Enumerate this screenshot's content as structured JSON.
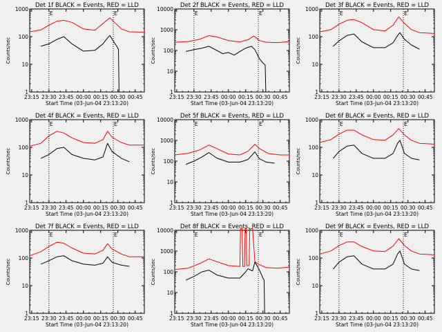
{
  "figure": {
    "background": "#f0f0f0",
    "events_color": "#000000",
    "lld_color": "#ff0000"
  },
  "chart_data": {
    "type": "line",
    "grid_layout": "3x3",
    "y_scale": "log",
    "ylabel": "Counts/sec",
    "xlabel": "Start Time (03-Jun-04 23:13:20)",
    "x_tick_labels": [
      "23:15",
      "23:30",
      "23:45",
      "00:00",
      "00:15",
      "00:30",
      "00:45"
    ],
    "x_tick_minutes": [
      0,
      15,
      30,
      45,
      60,
      75,
      90
    ],
    "xlim_minutes": [
      -1.7,
      98
    ],
    "markers": [
      {
        "label": "E",
        "minute": 15
      },
      {
        "label": "E",
        "minute": 71
      }
    ],
    "series_names": [
      "BLACK = Events",
      "RED = LLD"
    ],
    "panels": [
      {
        "title": "Det 1f BLACK = Events, RED = LLD",
        "ylim": [
          1,
          1000
        ],
        "y_tick_labels": [
          "1",
          "10",
          "100",
          "1000"
        ],
        "y_tick_values": [
          1,
          10,
          100,
          1000
        ],
        "red": {
          "minute": [
            -1.7,
            8,
            15,
            22,
            28,
            35,
            45,
            55,
            62,
            68,
            72,
            78,
            85,
            98
          ],
          "value": [
            150,
            175,
            260,
            360,
            390,
            330,
            190,
            170,
            300,
            480,
            330,
            190,
            150,
            145
          ]
        },
        "black": {
          "minute": [
            8,
            15,
            22,
            28,
            35,
            45,
            55,
            62,
            66,
            68,
            72,
            74,
            75.5,
            76
          ],
          "value": [
            45,
            55,
            80,
            100,
            55,
            30,
            32,
            55,
            90,
            110,
            60,
            45,
            35,
            1
          ]
        }
      },
      {
        "title": "Det 2f BLACK = Events, RED = LLD",
        "ylim": [
          1,
          10000
        ],
        "y_tick_labels": [
          "1",
          "10",
          "100",
          "1000",
          "10000"
        ],
        "y_tick_values": [
          1,
          10,
          100,
          1000,
          10000
        ],
        "red": {
          "minute": [
            -1.7,
            10,
            20,
            28,
            35,
            45,
            55,
            62,
            67,
            72,
            78,
            88,
            98
          ],
          "value": [
            250,
            270,
            350,
            520,
            450,
            300,
            260,
            330,
            500,
            300,
            250,
            240,
            270
          ]
        },
        "black": {
          "minute": [
            8,
            15,
            22,
            28,
            35,
            40,
            45,
            50,
            55,
            60,
            65,
            68,
            72,
            75,
            77,
            77.5
          ],
          "value": [
            90,
            110,
            130,
            160,
            100,
            70,
            80,
            60,
            90,
            130,
            160,
            110,
            40,
            25,
            20,
            1
          ]
        }
      },
      {
        "title": "Det 3f BLACK = Events, RED = LLD",
        "ylim": [
          1,
          1000
        ],
        "y_tick_labels": [
          "1",
          "10",
          "100",
          "1000"
        ],
        "y_tick_values": [
          1,
          10,
          100,
          1000
        ],
        "red": {
          "minute": [
            -1.7,
            8,
            15,
            22,
            28,
            35,
            45,
            55,
            62,
            67,
            72,
            78,
            85,
            98
          ],
          "value": [
            150,
            180,
            280,
            390,
            420,
            320,
            180,
            160,
            260,
            520,
            300,
            180,
            140,
            130
          ]
        },
        "black": {
          "minute": [
            10,
            15,
            22,
            28,
            35,
            45,
            55,
            62,
            66,
            68,
            72,
            78,
            85
          ],
          "value": [
            45,
            70,
            110,
            125,
            65,
            40,
            40,
            60,
            110,
            140,
            80,
            50,
            35
          ]
        }
      },
      {
        "title": "Det 4f BLACK = Events, RED = LLD",
        "ylim": [
          1,
          1000
        ],
        "y_tick_labels": [
          "1",
          "10",
          "100",
          "1000"
        ],
        "y_tick_values": [
          1,
          10,
          100,
          1000
        ],
        "red": {
          "minute": [
            -1.7,
            8,
            15,
            22,
            28,
            35,
            45,
            55,
            62,
            66,
            70,
            78,
            85,
            98
          ],
          "value": [
            110,
            140,
            260,
            380,
            330,
            220,
            150,
            140,
            190,
            380,
            230,
            150,
            120,
            120
          ]
        },
        "black": {
          "minute": [
            8,
            15,
            22,
            28,
            35,
            45,
            55,
            62,
            66,
            70,
            78,
            85
          ],
          "value": [
            40,
            55,
            90,
            100,
            55,
            40,
            35,
            45,
            140,
            70,
            40,
            30
          ]
        }
      },
      {
        "title": "Det 5f BLACK = Events, RED = LLD",
        "ylim": [
          1,
          10000
        ],
        "y_tick_labels": [
          "1",
          "10",
          "100",
          "1000",
          "10000"
        ],
        "y_tick_values": [
          1,
          10,
          100,
          1000,
          10000
        ],
        "red": {
          "minute": [
            -1.7,
            10,
            20,
            28,
            35,
            45,
            55,
            62,
            68,
            72,
            80,
            90,
            98
          ],
          "value": [
            200,
            240,
            350,
            600,
            400,
            220,
            200,
            300,
            650,
            400,
            230,
            200,
            200
          ]
        },
        "black": {
          "minute": [
            8,
            15,
            22,
            28,
            35,
            45,
            55,
            62,
            68,
            72,
            78,
            85
          ],
          "value": [
            70,
            100,
            160,
            260,
            140,
            90,
            90,
            120,
            280,
            130,
            90,
            80
          ]
        }
      },
      {
        "title": "Det 6f BLACK = Events, RED = LLD",
        "ylim": [
          1,
          1000
        ],
        "y_tick_labels": [
          "1",
          "10",
          "100",
          "1000"
        ],
        "y_tick_values": [
          1,
          10,
          100,
          1000
        ],
        "red": {
          "minute": [
            -1.7,
            8,
            15,
            22,
            28,
            35,
            45,
            55,
            62,
            67,
            72,
            78,
            85,
            98
          ],
          "value": [
            150,
            190,
            300,
            420,
            420,
            280,
            190,
            180,
            280,
            480,
            280,
            180,
            140,
            130
          ]
        },
        "black": {
          "minute": [
            10,
            15,
            22,
            28,
            35,
            45,
            55,
            62,
            66,
            68,
            72,
            78,
            85
          ],
          "value": [
            40,
            70,
            110,
            120,
            60,
            40,
            40,
            60,
            140,
            180,
            60,
            40,
            35
          ]
        }
      },
      {
        "title": "Det 7f BLACK = Events, RED = LLD",
        "ylim": [
          1,
          1000
        ],
        "y_tick_labels": [
          "1",
          "10",
          "100",
          "1000"
        ],
        "y_tick_values": [
          1,
          10,
          100,
          1000
        ],
        "red": {
          "minute": [
            -1.7,
            8,
            15,
            22,
            28,
            35,
            45,
            55,
            62,
            66,
            70,
            78,
            85,
            98
          ],
          "value": [
            120,
            170,
            260,
            370,
            340,
            230,
            150,
            140,
            190,
            330,
            210,
            140,
            110,
            110
          ]
        },
        "black": {
          "minute": [
            8,
            15,
            22,
            28,
            35,
            45,
            55,
            62,
            66,
            70,
            78,
            85
          ],
          "value": [
            60,
            80,
            110,
            120,
            80,
            60,
            55,
            65,
            110,
            70,
            55,
            50
          ]
        }
      },
      {
        "title": "Det 8f BLACK = Events, RED = LLD",
        "ylim": [
          1,
          10000
        ],
        "y_tick_labels": [
          "1",
          "10",
          "100",
          "1000",
          "10000"
        ],
        "y_tick_values": [
          1,
          10,
          100,
          1000,
          10000
        ],
        "red": {
          "minute": [
            -1.7,
            10,
            20,
            28,
            35,
            45,
            55,
            55.5,
            57,
            57.5,
            59,
            59.5,
            60.5,
            61,
            63,
            63.5,
            66,
            68,
            72,
            78,
            88,
            98
          ],
          "value": [
            130,
            150,
            250,
            420,
            310,
            200,
            180,
            12000,
            12000,
            180,
            180,
            12000,
            12000,
            200,
            200,
            12000,
            12000,
            300,
            220,
            160,
            150,
            170
          ]
        },
        "black": {
          "minute": [
            8,
            15,
            22,
            28,
            35,
            45,
            55,
            60,
            62,
            66,
            68,
            72,
            75,
            76,
            76.5
          ],
          "value": [
            40,
            60,
            100,
            120,
            70,
            50,
            50,
            100,
            140,
            110,
            300,
            120,
            50,
            40,
            1
          ]
        }
      },
      {
        "title": "Det 9f BLACK = Events, RED = LLD",
        "ylim": [
          1,
          1000
        ],
        "y_tick_labels": [
          "1",
          "10",
          "100",
          "1000"
        ],
        "y_tick_values": [
          1,
          10,
          100,
          1000
        ],
        "red": {
          "minute": [
            -1.7,
            8,
            15,
            22,
            28,
            35,
            45,
            55,
            62,
            67,
            72,
            78,
            85,
            98
          ],
          "value": [
            140,
            180,
            280,
            380,
            380,
            260,
            180,
            170,
            270,
            500,
            280,
            180,
            140,
            130
          ]
        },
        "black": {
          "minute": [
            10,
            15,
            22,
            28,
            35,
            45,
            55,
            62,
            66,
            68,
            72,
            78,
            85
          ],
          "value": [
            40,
            70,
            110,
            120,
            60,
            40,
            40,
            60,
            140,
            180,
            60,
            40,
            35
          ]
        }
      }
    ]
  }
}
